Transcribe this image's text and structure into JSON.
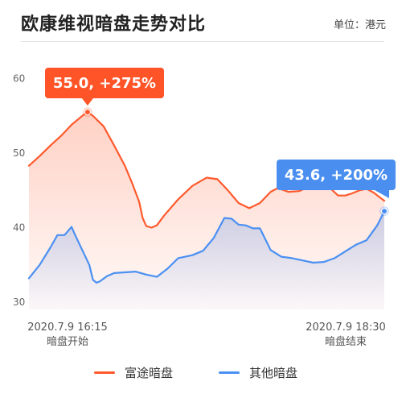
{
  "title": "欧康维视暗盘走势对比",
  "unit": "单位：港元",
  "colors": {
    "orange": "#ff5a2e",
    "blue": "#4a90f2",
    "orange_label_bg": "#ff5427",
    "blue_label_bg": "#4a8ff0"
  },
  "chart_data": {
    "type": "line",
    "title": "欧康维视暗盘走势对比",
    "ylim": [
      29,
      64
    ],
    "y_ticks": [
      30,
      40,
      50,
      60
    ],
    "x_start_label": "2020.7.9 16:15",
    "x_start_sub": "暗盘开始",
    "x_end_label": "2020.7.9 18:30",
    "x_end_sub": "暗盘结束",
    "grid": false,
    "legend_position": "bottom",
    "series": [
      {
        "name": "富途暗盘",
        "color": "#ff5a2e",
        "x": [
          0,
          0.03,
          0.06,
          0.09,
          0.12,
          0.15,
          0.165,
          0.18,
          0.21,
          0.24,
          0.27,
          0.29,
          0.31,
          0.32,
          0.33,
          0.345,
          0.36,
          0.38,
          0.42,
          0.46,
          0.5,
          0.53,
          0.56,
          0.59,
          0.62,
          0.65,
          0.68,
          0.7,
          0.73,
          0.76,
          0.79,
          0.82,
          0.85,
          0.87,
          0.89,
          0.91,
          0.93,
          0.95,
          0.97,
          1.0
        ],
        "values": [
          48.3,
          49.6,
          51.0,
          52.3,
          53.8,
          55.0,
          55.5,
          55.0,
          53.6,
          51.0,
          48.3,
          46.0,
          43.5,
          41.3,
          40.2,
          40.0,
          40.3,
          41.6,
          43.8,
          45.6,
          46.7,
          46.5,
          45.0,
          43.3,
          42.6,
          43.3,
          44.8,
          45.3,
          44.8,
          44.9,
          45.5,
          45.9,
          45.2,
          44.3,
          44.3,
          44.6,
          45.0,
          45.2,
          44.7,
          43.6
        ]
      },
      {
        "name": "其他暗盘",
        "color": "#4a90f2",
        "x": [
          0,
          0.03,
          0.06,
          0.08,
          0.1,
          0.12,
          0.13,
          0.15,
          0.17,
          0.18,
          0.19,
          0.2,
          0.22,
          0.24,
          0.27,
          0.3,
          0.33,
          0.36,
          0.39,
          0.42,
          0.46,
          0.49,
          0.52,
          0.55,
          0.57,
          0.59,
          0.61,
          0.63,
          0.65,
          0.68,
          0.71,
          0.74,
          0.77,
          0.8,
          0.83,
          0.86,
          0.89,
          0.92,
          0.95,
          0.98,
          1.0
        ],
        "values": [
          33.2,
          35.0,
          37.3,
          39.0,
          39.0,
          40.1,
          39.0,
          37.0,
          35.0,
          33.0,
          32.6,
          32.8,
          33.5,
          33.9,
          34.0,
          34.1,
          33.7,
          33.4,
          34.5,
          35.9,
          36.3,
          36.9,
          38.6,
          41.3,
          41.2,
          40.4,
          40.3,
          39.9,
          39.9,
          37.0,
          36.1,
          35.9,
          35.6,
          35.3,
          35.4,
          35.9,
          36.8,
          37.7,
          38.3,
          40.3,
          42.2
        ]
      }
    ],
    "annotations": [
      {
        "series": "富途暗盘",
        "text": "55.0, +275%",
        "value": 55.0
      },
      {
        "series": "其他暗盘",
        "text": "43.6, +200%",
        "value": 43.6
      }
    ]
  }
}
